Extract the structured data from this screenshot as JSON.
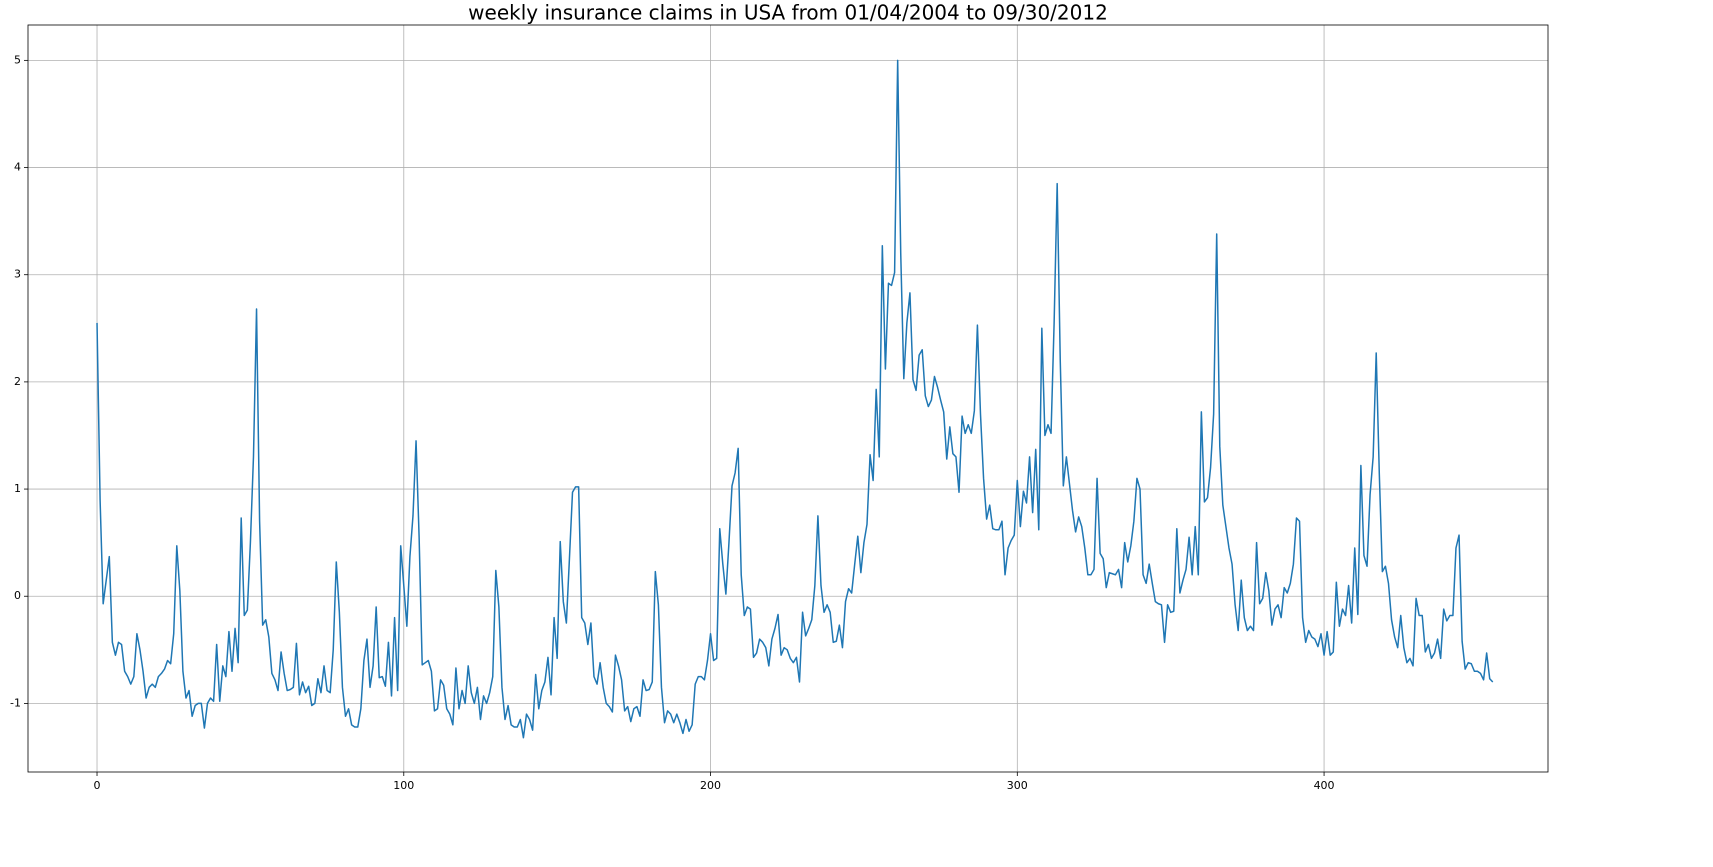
{
  "chart_data": {
    "type": "line",
    "title": "weekly insurance claims in USA from 01/04/2004 to 09/30/2012",
    "color": "#1f77b4",
    "grid": true,
    "xlim": [
      -22.5,
      473
    ],
    "xticks": [
      0,
      100,
      200,
      300,
      400
    ],
    "ylim": [
      -1.64,
      5.33
    ],
    "yticks": [
      -1,
      0,
      1,
      2,
      3,
      4,
      5
    ],
    "x": [
      0,
      1,
      2,
      3,
      4,
      5,
      6,
      7,
      8,
      9,
      10,
      11,
      12,
      13,
      14,
      15,
      16,
      17,
      18,
      19,
      20,
      21,
      22,
      23,
      24,
      25,
      26,
      27,
      28,
      29,
      30,
      31,
      32,
      33,
      34,
      35,
      36,
      37,
      38,
      39,
      40,
      41,
      42,
      43,
      44,
      45,
      46,
      47,
      48,
      49,
      50,
      51,
      52,
      53,
      54,
      55,
      56,
      57,
      58,
      59,
      60,
      61,
      62,
      63,
      64,
      65,
      66,
      67,
      68,
      69,
      70,
      71,
      72,
      73,
      74,
      75,
      76,
      77,
      78,
      79,
      80,
      81,
      82,
      83,
      84,
      85,
      86,
      87,
      88,
      89,
      90,
      91,
      92,
      93,
      94,
      95,
      96,
      97,
      98,
      99,
      100,
      101,
      102,
      103,
      104,
      105,
      106,
      107,
      108,
      109,
      110,
      111,
      112,
      113,
      114,
      115,
      116,
      117,
      118,
      119,
      120,
      121,
      122,
      123,
      124,
      125,
      126,
      127,
      128,
      129,
      130,
      131,
      132,
      133,
      134,
      135,
      136,
      137,
      138,
      139,
      140,
      141,
      142,
      143,
      144,
      145,
      146,
      147,
      148,
      149,
      150,
      151,
      152,
      153,
      154,
      155,
      156,
      157,
      158,
      159,
      160,
      161,
      162,
      163,
      164,
      165,
      166,
      167,
      168,
      169,
      170,
      171,
      172,
      173,
      174,
      175,
      176,
      177,
      178,
      179,
      180,
      181,
      182,
      183,
      184,
      185,
      186,
      187,
      188,
      189,
      190,
      191,
      192,
      193,
      194,
      195,
      196,
      197,
      198,
      199,
      200,
      201,
      202,
      203,
      204,
      205,
      206,
      207,
      208,
      209,
      210,
      211,
      212,
      213,
      214,
      215,
      216,
      217,
      218,
      219,
      220,
      221,
      222,
      223,
      224,
      225,
      226,
      227,
      228,
      229,
      230,
      231,
      232,
      233,
      234,
      235,
      236,
      237,
      238,
      239,
      240,
      241,
      242,
      243,
      244,
      245,
      246,
      247,
      248,
      249,
      250,
      251,
      252,
      253,
      254,
      255,
      256,
      257,
      258,
      259,
      260,
      261,
      262,
      263,
      264,
      265,
      266,
      267,
      268,
      269,
      270,
      271,
      272,
      273,
      274,
      275,
      276,
      277,
      278,
      279,
      280,
      281,
      282,
      283,
      284,
      285,
      286,
      287,
      288,
      289,
      290,
      291,
      292,
      293,
      294,
      295,
      296,
      297,
      298,
      299,
      300,
      301,
      302,
      303,
      304,
      305,
      306,
      307,
      308,
      309,
      310,
      311,
      312,
      313,
      314,
      315,
      316,
      317,
      318,
      319,
      320,
      321,
      322,
      323,
      324,
      325,
      326,
      327,
      328,
      329,
      330,
      331,
      332,
      333,
      334,
      335,
      336,
      337,
      338,
      339,
      340,
      341,
      342,
      343,
      344,
      345,
      346,
      347,
      348,
      349,
      350,
      351,
      352,
      353,
      354,
      355,
      356,
      357,
      358,
      359,
      360,
      361,
      362,
      363,
      364,
      365,
      366,
      367,
      368,
      369,
      370,
      371,
      372,
      373,
      374,
      375,
      376,
      377,
      378,
      379,
      380,
      381,
      382,
      383,
      384,
      385,
      386,
      387,
      388,
      389,
      390,
      391,
      392,
      393,
      394,
      395,
      396,
      397,
      398,
      399,
      400,
      401,
      402,
      403,
      404,
      405,
      406,
      407,
      408,
      409,
      410,
      411,
      412,
      413,
      414,
      415,
      416,
      417,
      418,
      419,
      420,
      421,
      422,
      423,
      424,
      425,
      426,
      427,
      428,
      429,
      430,
      431,
      432,
      433,
      434,
      435,
      436,
      437,
      438,
      439,
      440,
      441,
      442,
      443,
      444,
      445,
      446,
      447,
      448,
      449,
      450,
      451,
      452,
      453,
      454,
      455
    ],
    "values": [
      2.55,
      0.9,
      -0.07,
      0.15,
      0.37,
      -0.43,
      -0.55,
      -0.43,
      -0.45,
      -0.7,
      -0.75,
      -0.82,
      -0.75,
      -0.35,
      -0.5,
      -0.7,
      -0.95,
      -0.85,
      -0.82,
      -0.85,
      -0.75,
      -0.72,
      -0.68,
      -0.6,
      -0.63,
      -0.35,
      0.47,
      0.05,
      -0.7,
      -0.95,
      -0.88,
      -1.12,
      -1.02,
      -1.0,
      -1.0,
      -1.23,
      -1.0,
      -0.95,
      -0.98,
      -0.45,
      -0.98,
      -0.65,
      -0.75,
      -0.33,
      -0.7,
      -0.3,
      -0.62,
      0.73,
      -0.18,
      -0.13,
      0.5,
      1.3,
      2.68,
      0.7,
      -0.27,
      -0.22,
      -0.38,
      -0.72,
      -0.78,
      -0.88,
      -0.52,
      -0.72,
      -0.88,
      -0.87,
      -0.85,
      -0.44,
      -0.92,
      -0.8,
      -0.9,
      -0.84,
      -1.02,
      -1.0,
      -0.77,
      -0.9,
      -0.65,
      -0.88,
      -0.9,
      -0.5,
      0.32,
      -0.15,
      -0.85,
      -1.12,
      -1.05,
      -1.2,
      -1.22,
      -1.22,
      -1.05,
      -0.6,
      -0.4,
      -0.85,
      -0.65,
      -0.1,
      -0.76,
      -0.75,
      -0.84,
      -0.43,
      -0.93,
      -0.2,
      -0.88,
      0.47,
      0.1,
      -0.28,
      0.37,
      0.75,
      1.45,
      0.55,
      -0.64,
      -0.62,
      -0.6,
      -0.7,
      -1.07,
      -1.05,
      -0.78,
      -0.83,
      -1.05,
      -1.1,
      -1.2,
      -0.67,
      -1.05,
      -0.88,
      -1.0,
      -0.65,
      -0.9,
      -1.0,
      -0.85,
      -1.15,
      -0.93,
      -1.0,
      -0.9,
      -0.75,
      0.24,
      -0.1,
      -0.85,
      -1.15,
      -1.02,
      -1.2,
      -1.22,
      -1.22,
      -1.15,
      -1.32,
      -1.1,
      -1.15,
      -1.25,
      -0.73,
      -1.05,
      -0.88,
      -0.8,
      -0.57,
      -0.92,
      -0.2,
      -0.58,
      0.51,
      -0.05,
      -0.25,
      0.35,
      0.97,
      1.02,
      1.02,
      -0.2,
      -0.25,
      -0.45,
      -0.25,
      -0.75,
      -0.82,
      -0.62,
      -0.85,
      -1.0,
      -1.03,
      -1.08,
      -0.55,
      -0.65,
      -0.78,
      -1.07,
      -1.03,
      -1.17,
      -1.05,
      -1.03,
      -1.12,
      -0.78,
      -0.88,
      -0.87,
      -0.8,
      0.23,
      -0.08,
      -0.85,
      -1.18,
      -1.07,
      -1.1,
      -1.18,
      -1.1,
      -1.18,
      -1.28,
      -1.15,
      -1.26,
      -1.2,
      -0.82,
      -0.75,
      -0.75,
      -0.78,
      -0.6,
      -0.35,
      -0.6,
      -0.58,
      0.63,
      0.3,
      0.02,
      0.5,
      1.03,
      1.15,
      1.38,
      0.2,
      -0.18,
      -0.1,
      -0.12,
      -0.57,
      -0.53,
      -0.4,
      -0.43,
      -0.48,
      -0.65,
      -0.4,
      -0.3,
      -0.17,
      -0.55,
      -0.48,
      -0.5,
      -0.58,
      -0.62,
      -0.57,
      -0.8,
      -0.15,
      -0.37,
      -0.3,
      -0.22,
      0.1,
      0.75,
      0.1,
      -0.15,
      -0.08,
      -0.15,
      -0.43,
      -0.42,
      -0.27,
      -0.48,
      -0.05,
      0.07,
      0.03,
      0.3,
      0.56,
      0.22,
      0.5,
      0.67,
      1.32,
      1.08,
      1.93,
      1.3,
      3.27,
      2.12,
      2.92,
      2.9,
      3.02,
      5.0,
      3.2,
      2.03,
      2.55,
      2.83,
      2.02,
      1.92,
      2.25,
      2.3,
      1.87,
      1.77,
      1.83,
      2.05,
      1.95,
      1.83,
      1.72,
      1.28,
      1.58,
      1.33,
      1.3,
      0.97,
      1.68,
      1.52,
      1.6,
      1.52,
      1.73,
      2.53,
      1.7,
      1.1,
      0.72,
      0.85,
      0.63,
      0.62,
      0.62,
      0.7,
      0.2,
      0.45,
      0.52,
      0.57,
      1.08,
      0.65,
      0.98,
      0.87,
      1.3,
      0.78,
      1.37,
      0.62,
      2.5,
      1.5,
      1.6,
      1.52,
      2.55,
      3.85,
      2.2,
      1.03,
      1.3,
      1.05,
      0.8,
      0.6,
      0.74,
      0.65,
      0.45,
      0.2,
      0.2,
      0.25,
      1.1,
      0.4,
      0.35,
      0.08,
      0.22,
      0.21,
      0.2,
      0.25,
      0.08,
      0.5,
      0.32,
      0.47,
      0.7,
      1.1,
      1.0,
      0.2,
      0.12,
      0.3,
      0.12,
      -0.05,
      -0.07,
      -0.08,
      -0.43,
      -0.08,
      -0.15,
      -0.14,
      0.63,
      0.03,
      0.15,
      0.25,
      0.55,
      0.2,
      0.65,
      0.2,
      1.72,
      0.88,
      0.92,
      1.2,
      1.7,
      3.38,
      1.4,
      0.85,
      0.65,
      0.45,
      0.3,
      -0.08,
      -0.32,
      0.15,
      -0.2,
      -0.32,
      -0.28,
      -0.32,
      0.5,
      -0.07,
      -0.02,
      0.22,
      0.05,
      -0.27,
      -0.12,
      -0.08,
      -0.2,
      0.08,
      0.03,
      0.12,
      0.3,
      0.73,
      0.7,
      -0.2,
      -0.43,
      -0.32,
      -0.38,
      -0.4,
      -0.47,
      -0.35,
      -0.55,
      -0.33,
      -0.55,
      -0.52,
      0.13,
      -0.28,
      -0.12,
      -0.18,
      0.1,
      -0.25,
      0.45,
      -0.17,
      1.22,
      0.38,
      0.28,
      0.95,
      1.3,
      2.27,
      1.15,
      0.23,
      0.28,
      0.12,
      -0.22,
      -0.38,
      -0.48,
      -0.18,
      -0.48,
      -0.62,
      -0.58,
      -0.65,
      -0.02,
      -0.18,
      -0.18,
      -0.52,
      -0.45,
      -0.58,
      -0.53,
      -0.4,
      -0.58,
      -0.12,
      -0.23,
      -0.18,
      -0.18,
      0.45,
      0.57,
      -0.42,
      -0.68,
      -0.62,
      -0.63,
      -0.7,
      -0.7,
      -0.72,
      -0.78,
      -0.53,
      -0.77,
      -0.8
    ]
  }
}
